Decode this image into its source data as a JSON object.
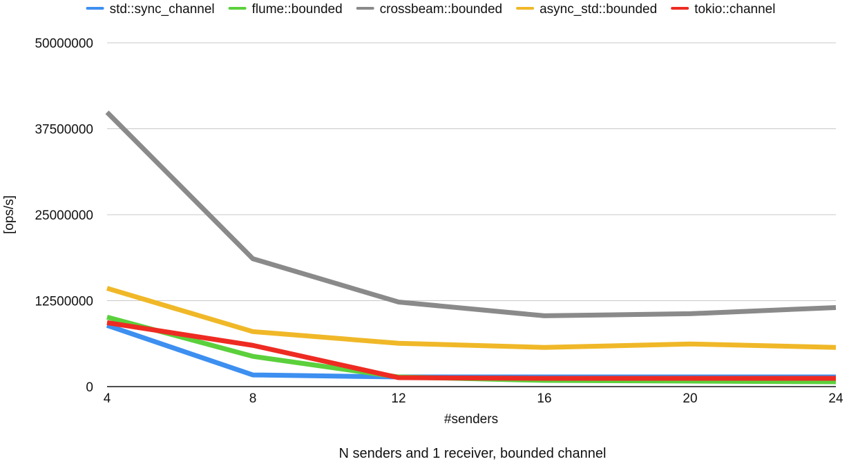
{
  "chart_data": {
    "type": "line",
    "title": "N senders and 1 receiver, bounded channel",
    "xlabel": "#senders",
    "ylabel": "[ops/s]",
    "x": [
      4,
      8,
      12,
      16,
      20,
      24
    ],
    "x_tick_labels": [
      "4",
      "8",
      "12",
      "16",
      "20",
      "24"
    ],
    "y_ticks": [
      0,
      12500000,
      25000000,
      37500000,
      50000000
    ],
    "y_tick_labels": [
      "0",
      "12500000",
      "25000000",
      "37500000",
      "50000000"
    ],
    "ylim": [
      0,
      50000000
    ],
    "grid": "horizontal",
    "legend_position": "top",
    "series": [
      {
        "name": "std::sync_channel",
        "color": "#3d8ff0",
        "values": [
          8900000,
          1700000,
          1400000,
          1400000,
          1400000,
          1400000
        ]
      },
      {
        "name": "flume::bounded",
        "color": "#5bd03c",
        "values": [
          10100000,
          4400000,
          1400000,
          900000,
          800000,
          700000
        ]
      },
      {
        "name": "crossbeam::bounded",
        "color": "#8a8a8a",
        "values": [
          39900000,
          18600000,
          12300000,
          10300000,
          10600000,
          11500000
        ]
      },
      {
        "name": "async_std::bounded",
        "color": "#f0b828",
        "values": [
          14300000,
          8000000,
          6300000,
          5700000,
          6200000,
          5700000
        ]
      },
      {
        "name": "tokio::channel",
        "color": "#ee2b22",
        "values": [
          9300000,
          6000000,
          1300000,
          1200000,
          1200000,
          1200000
        ]
      }
    ]
  }
}
